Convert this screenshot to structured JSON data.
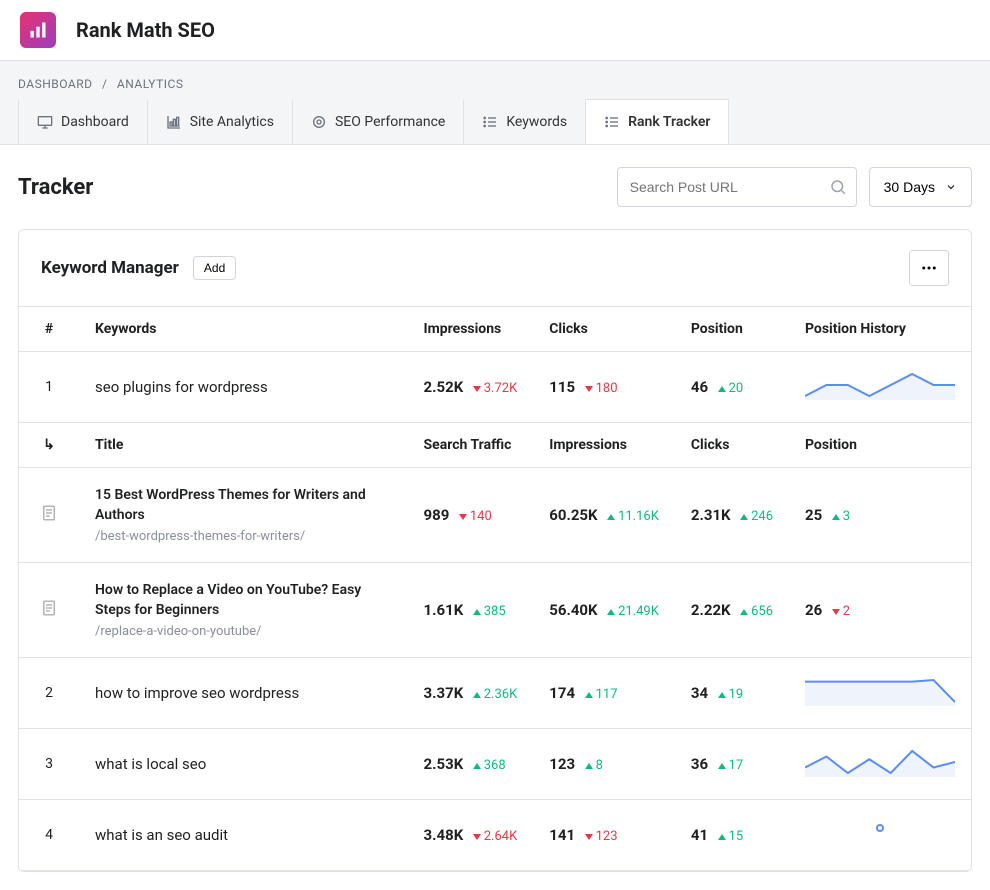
{
  "app": {
    "title": "Rank Math SEO"
  },
  "breadcrumb": {
    "item1": "DASHBOARD",
    "item2": "ANALYTICS"
  },
  "tabs": [
    {
      "label": "Dashboard"
    },
    {
      "label": "Site Analytics"
    },
    {
      "label": "SEO Performance"
    },
    {
      "label": "Keywords"
    },
    {
      "label": "Rank Tracker"
    }
  ],
  "page": {
    "title": "Tracker"
  },
  "search": {
    "placeholder": "Search Post URL"
  },
  "range": {
    "label": "30 Days"
  },
  "card": {
    "title": "Keyword Manager",
    "add": "Add"
  },
  "columns": {
    "idx": "#",
    "keywords": "Keywords",
    "impressions": "Impressions",
    "clicks": "Clicks",
    "position": "Position",
    "history": "Position History"
  },
  "rows": [
    {
      "idx": "1",
      "keyword": "seo plugins for wordpress",
      "impressions": {
        "val": "2.52K",
        "delta": "3.72K",
        "dir": "down"
      },
      "clicks": {
        "val": "115",
        "delta": "180",
        "dir": "down"
      },
      "position": {
        "val": "46",
        "delta": "20",
        "dir": "up"
      },
      "spark": [
        12,
        11,
        11,
        12,
        11,
        10,
        11,
        11
      ]
    },
    {
      "idx": "2",
      "keyword": "how to improve seo wordpress",
      "impressions": {
        "val": "3.37K",
        "delta": "2.36K",
        "dir": "up"
      },
      "clicks": {
        "val": "174",
        "delta": "117",
        "dir": "up"
      },
      "position": {
        "val": "34",
        "delta": "19",
        "dir": "up"
      },
      "spark": [
        11,
        11,
        11,
        11,
        11,
        11,
        10,
        24
      ]
    },
    {
      "idx": "3",
      "keyword": "what is local seo",
      "impressions": {
        "val": "2.53K",
        "delta": "368",
        "dir": "up"
      },
      "clicks": {
        "val": "123",
        "delta": "8",
        "dir": "up"
      },
      "position": {
        "val": "36",
        "delta": "17",
        "dir": "up"
      },
      "spark": [
        20,
        16,
        22,
        17,
        22,
        14,
        20,
        18
      ]
    },
    {
      "idx": "4",
      "keyword": "what is an seo audit",
      "impressions": {
        "val": "3.48K",
        "delta": "2.64K",
        "dir": "down"
      },
      "clicks": {
        "val": "141",
        "delta": "123",
        "dir": "down"
      },
      "position": {
        "val": "41",
        "delta": "15",
        "dir": "up"
      },
      "spark": null
    }
  ],
  "sub_columns": {
    "title": "Title",
    "search_traffic": "Search Traffic",
    "impressions": "Impressions",
    "clicks": "Clicks",
    "position": "Position"
  },
  "sub_rows": [
    {
      "title": "15 Best WordPress Themes for Writers and Authors",
      "url": "/best-wordpress-themes-for-writers/",
      "search_traffic": {
        "val": "989",
        "delta": "140",
        "dir": "down"
      },
      "impressions": {
        "val": "60.25K",
        "delta": "11.16K",
        "dir": "up"
      },
      "clicks": {
        "val": "2.31K",
        "delta": "246",
        "dir": "up"
      },
      "position": {
        "val": "25",
        "delta": "3",
        "dir": "up"
      }
    },
    {
      "title": "How to Replace a Video on YouTube? Easy Steps for Beginners",
      "url": "/replace-a-video-on-youtube/",
      "search_traffic": {
        "val": "1.61K",
        "delta": "385",
        "dir": "up"
      },
      "impressions": {
        "val": "56.40K",
        "delta": "21.49K",
        "dir": "up"
      },
      "clicks": {
        "val": "2.22K",
        "delta": "656",
        "dir": "up"
      },
      "position": {
        "val": "26",
        "delta": "2",
        "dir": "down"
      }
    }
  ],
  "colors": {
    "spark_stroke": "#5b8def",
    "spark_fill": "#eef3fc",
    "up": "#10b981",
    "down": "#e63946"
  }
}
